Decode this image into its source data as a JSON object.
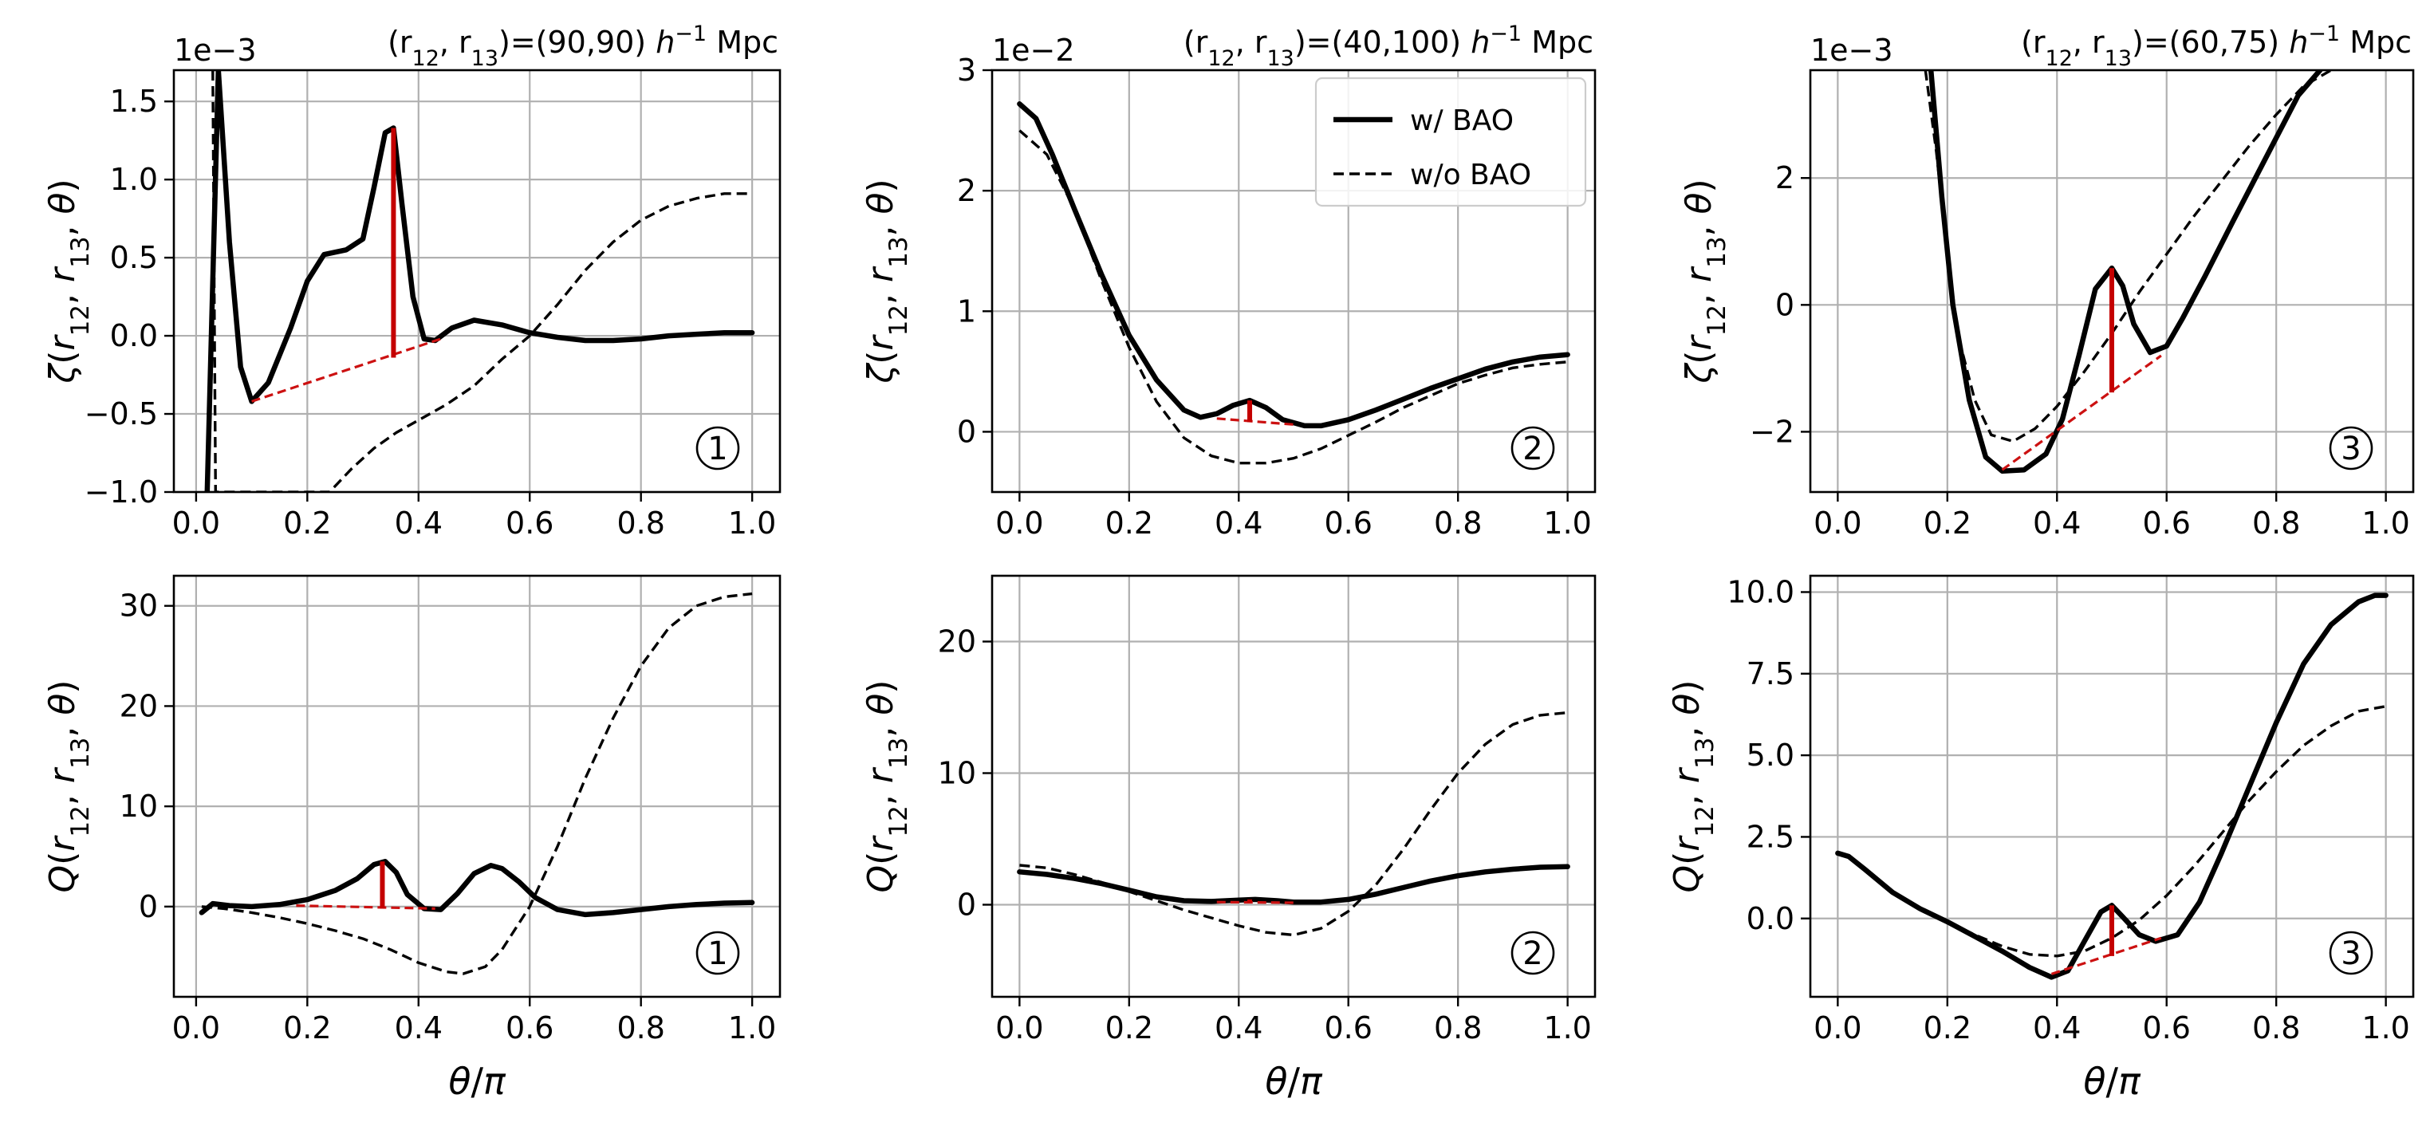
{
  "chart_data": [
    {
      "type": "line",
      "row": 0,
      "col": 0,
      "title": "(r12, r13)=(90,90) h⁻¹ Mpc",
      "title_parts": {
        "prefix": "(r",
        "s1": "12",
        "mid": ", r",
        "s2": "13",
        "eq": ")=(90,90) ",
        "h": "h",
        "sup": "−1",
        "unit": " Mpc"
      },
      "ylabel": {
        "sym": "ζ",
        "open": "(r",
        "s1": "12",
        "mid": ", r",
        "s2": "13",
        "close": ", θ)"
      },
      "xlabel": "",
      "sci_offset": "1e−3",
      "xlim": [
        -0.04,
        1.05
      ],
      "ylim": [
        -1.0,
        1.7
      ],
      "xticks": [
        0.0,
        0.2,
        0.4,
        0.6,
        0.8,
        1.0
      ],
      "xtick_labels": [
        "0.0",
        "0.2",
        "0.4",
        "0.6",
        "0.8",
        "1.0"
      ],
      "yticks": [
        -1.0,
        -0.5,
        0.0,
        0.5,
        1.0,
        1.5
      ],
      "ytick_labels": [
        "−1.0",
        "−0.5",
        "0.0",
        "0.5",
        "1.0",
        "1.5"
      ],
      "marker": "①",
      "series": [
        {
          "name": "w/ BAO",
          "style": "solid",
          "x": [
            0.02,
            0.04,
            0.06,
            0.08,
            0.1,
            0.13,
            0.17,
            0.2,
            0.23,
            0.27,
            0.3,
            0.32,
            0.34,
            0.355,
            0.37,
            0.39,
            0.41,
            0.43,
            0.46,
            0.5,
            0.55,
            0.6,
            0.65,
            0.7,
            0.75,
            0.8,
            0.85,
            0.9,
            0.95,
            1.0
          ],
          "y": [
            -1.0,
            1.7,
            0.6,
            -0.2,
            -0.42,
            -0.3,
            0.05,
            0.35,
            0.52,
            0.55,
            0.62,
            0.95,
            1.3,
            1.33,
            0.85,
            0.25,
            -0.02,
            -0.03,
            0.05,
            0.1,
            0.07,
            0.02,
            -0.01,
            -0.03,
            -0.03,
            -0.02,
            0.0,
            0.01,
            0.02,
            0.02
          ]
        },
        {
          "name": "w/o BAO",
          "style": "dashed",
          "x": [
            0.03,
            0.035,
            0.05,
            0.08,
            0.15,
            0.24,
            0.28,
            0.32,
            0.36,
            0.4,
            0.45,
            0.5,
            0.55,
            0.6,
            0.65,
            0.7,
            0.75,
            0.8,
            0.85,
            0.9,
            0.95,
            1.0
          ],
          "y": [
            1.7,
            -1.0,
            -1.0,
            -1.0,
            -1.0,
            -1.0,
            -0.85,
            -0.72,
            -0.62,
            -0.54,
            -0.44,
            -0.32,
            -0.15,
            0.0,
            0.2,
            0.42,
            0.6,
            0.74,
            0.83,
            0.88,
            0.91,
            0.91
          ]
        }
      ],
      "bao_baseline": {
        "x": [
          0.1,
          0.44
        ],
        "y": [
          -0.42,
          -0.02
        ]
      },
      "bao_peak": {
        "x": 0.355,
        "y0": -0.14,
        "y1": 1.33
      }
    },
    {
      "type": "line",
      "row": 0,
      "col": 1,
      "title": "(r12, r13)=(40,100) h⁻¹ Mpc",
      "title_parts": {
        "prefix": "(r",
        "s1": "12",
        "mid": ", r",
        "s2": "13",
        "eq": ")=(40,100) ",
        "h": "h",
        "sup": "−1",
        "unit": " Mpc"
      },
      "ylabel": {
        "sym": "ζ",
        "open": "(r",
        "s1": "12",
        "mid": ", r",
        "s2": "13",
        "close": ", θ)"
      },
      "xlabel": "",
      "sci_offset": "1e−2",
      "xlim": [
        -0.05,
        1.05
      ],
      "ylim": [
        -0.5,
        3.0
      ],
      "xticks": [
        0.0,
        0.2,
        0.4,
        0.6,
        0.8,
        1.0
      ],
      "xtick_labels": [
        "0.0",
        "0.2",
        "0.4",
        "0.6",
        "0.8",
        "1.0"
      ],
      "yticks": [
        0,
        1,
        2,
        3
      ],
      "ytick_labels": [
        "0",
        "1",
        "2",
        "3"
      ],
      "marker": "②",
      "legend": {
        "entries": [
          "w/ BAO",
          "w/o BAO"
        ],
        "location": "upper right"
      },
      "series": [
        {
          "name": "w/ BAO",
          "style": "solid",
          "x": [
            0.0,
            0.03,
            0.06,
            0.1,
            0.15,
            0.2,
            0.25,
            0.3,
            0.33,
            0.36,
            0.39,
            0.42,
            0.45,
            0.48,
            0.52,
            0.55,
            0.6,
            0.65,
            0.7,
            0.75,
            0.8,
            0.85,
            0.9,
            0.95,
            1.0
          ],
          "y": [
            2.72,
            2.6,
            2.3,
            1.85,
            1.3,
            0.8,
            0.43,
            0.18,
            0.12,
            0.15,
            0.22,
            0.26,
            0.2,
            0.1,
            0.05,
            0.05,
            0.1,
            0.18,
            0.27,
            0.36,
            0.44,
            0.52,
            0.58,
            0.62,
            0.64
          ]
        },
        {
          "name": "w/o BAO",
          "style": "dashed",
          "x": [
            0.0,
            0.05,
            0.1,
            0.15,
            0.2,
            0.25,
            0.3,
            0.35,
            0.4,
            0.45,
            0.5,
            0.55,
            0.6,
            0.65,
            0.7,
            0.75,
            0.8,
            0.85,
            0.9,
            0.95,
            1.0
          ],
          "y": [
            2.5,
            2.3,
            1.85,
            1.25,
            0.7,
            0.25,
            -0.05,
            -0.2,
            -0.26,
            -0.26,
            -0.22,
            -0.14,
            -0.03,
            0.08,
            0.2,
            0.3,
            0.4,
            0.47,
            0.53,
            0.56,
            0.58
          ]
        }
      ],
      "bao_baseline": {
        "x": [
          0.36,
          0.5
        ],
        "y": [
          0.11,
          0.06
        ]
      },
      "bao_peak": {
        "x": 0.42,
        "y0": 0.08,
        "y1": 0.26
      }
    },
    {
      "type": "line",
      "row": 0,
      "col": 2,
      "title": "(r12, r13)=(60,75) h⁻¹ Mpc",
      "title_parts": {
        "prefix": "(r",
        "s1": "12",
        "mid": ", r",
        "s2": "13",
        "eq": ")=(60,75) ",
        "h": "h",
        "sup": "−1",
        "unit": " Mpc"
      },
      "ylabel": {
        "sym": "ζ",
        "open": "(r",
        "s1": "12",
        "mid": ", r",
        "s2": "13",
        "close": ", θ)"
      },
      "xlabel": "",
      "sci_offset": "1e−3",
      "xlim": [
        -0.05,
        1.05
      ],
      "ylim": [
        -2.95,
        3.7
      ],
      "xticks": [
        0.0,
        0.2,
        0.4,
        0.6,
        0.8,
        1.0
      ],
      "xtick_labels": [
        "0.0",
        "0.2",
        "0.4",
        "0.6",
        "0.8",
        "1.0"
      ],
      "yticks": [
        -2,
        0,
        2
      ],
      "ytick_labels": [
        "−2",
        "0",
        "2"
      ],
      "marker": "③",
      "series": [
        {
          "name": "w/ BAO",
          "style": "solid",
          "x": [
            0.17,
            0.19,
            0.21,
            0.24,
            0.27,
            0.3,
            0.34,
            0.38,
            0.41,
            0.44,
            0.47,
            0.5,
            0.52,
            0.54,
            0.57,
            0.6,
            0.63,
            0.67,
            0.72,
            0.78,
            0.84,
            0.88
          ],
          "y": [
            3.7,
            1.7,
            0.0,
            -1.5,
            -2.4,
            -2.62,
            -2.6,
            -2.35,
            -1.8,
            -0.8,
            0.25,
            0.58,
            0.3,
            -0.3,
            -0.75,
            -0.65,
            -0.2,
            0.45,
            1.3,
            2.3,
            3.3,
            3.7
          ]
        },
        {
          "name": "w/o BAO",
          "style": "dashed",
          "x": [
            0.16,
            0.18,
            0.2,
            0.22,
            0.25,
            0.28,
            0.32,
            0.36,
            0.4,
            0.45,
            0.5,
            0.55,
            0.6,
            0.65,
            0.7,
            0.75,
            0.8,
            0.85,
            0.9
          ],
          "y": [
            3.7,
            2.4,
            0.8,
            -0.5,
            -1.5,
            -2.05,
            -2.15,
            -1.95,
            -1.6,
            -1.05,
            -0.45,
            0.2,
            0.8,
            1.4,
            1.95,
            2.5,
            3.0,
            3.45,
            3.7
          ]
        }
      ],
      "bao_baseline": {
        "x": [
          0.3,
          0.59
        ],
        "y": [
          -2.6,
          -0.8
        ]
      },
      "bao_peak": {
        "x": 0.5,
        "y0": -1.38,
        "y1": 0.58
      }
    },
    {
      "type": "line",
      "row": 1,
      "col": 0,
      "title": "",
      "ylabel": {
        "sym": "Q",
        "open": "(r",
        "s1": "12",
        "mid": ", r",
        "s2": "13",
        "close": ", θ)"
      },
      "xlabel": "θ/π",
      "xlim": [
        -0.04,
        1.05
      ],
      "ylim": [
        -9,
        33
      ],
      "xticks": [
        0.0,
        0.2,
        0.4,
        0.6,
        0.8,
        1.0
      ],
      "xtick_labels": [
        "0.0",
        "0.2",
        "0.4",
        "0.6",
        "0.8",
        "1.0"
      ],
      "yticks": [
        0,
        10,
        20,
        30
      ],
      "ytick_labels": [
        "0",
        "10",
        "20",
        "30"
      ],
      "marker": "①",
      "series": [
        {
          "name": "w/ BAO",
          "style": "solid",
          "x": [
            0.01,
            0.03,
            0.06,
            0.1,
            0.15,
            0.2,
            0.25,
            0.29,
            0.32,
            0.34,
            0.36,
            0.38,
            0.41,
            0.44,
            0.47,
            0.5,
            0.53,
            0.55,
            0.58,
            0.61,
            0.65,
            0.7,
            0.75,
            0.8,
            0.85,
            0.9,
            0.95,
            1.0
          ],
          "y": [
            -0.6,
            0.3,
            0.1,
            0.0,
            0.2,
            0.7,
            1.6,
            2.8,
            4.2,
            4.5,
            3.4,
            1.2,
            -0.2,
            -0.3,
            1.3,
            3.3,
            4.1,
            3.8,
            2.5,
            0.9,
            -0.3,
            -0.8,
            -0.6,
            -0.3,
            0.0,
            0.2,
            0.35,
            0.4
          ]
        },
        {
          "name": "w/o BAO",
          "style": "dashed",
          "x": [
            0.01,
            0.05,
            0.1,
            0.15,
            0.2,
            0.25,
            0.3,
            0.35,
            0.4,
            0.45,
            0.48,
            0.52,
            0.55,
            0.6,
            0.65,
            0.7,
            0.75,
            0.8,
            0.85,
            0.9,
            0.95,
            1.0
          ],
          "y": [
            0.0,
            -0.2,
            -0.6,
            -1.1,
            -1.7,
            -2.4,
            -3.2,
            -4.3,
            -5.6,
            -6.5,
            -6.7,
            -6.0,
            -4.3,
            0.0,
            6.0,
            12.8,
            18.8,
            24.0,
            27.8,
            30.0,
            30.9,
            31.2
          ]
        }
      ],
      "bao_baseline": {
        "x": [
          0.18,
          0.43
        ],
        "y": [
          0.1,
          -0.2
        ]
      },
      "bao_peak": {
        "x": 0.335,
        "y0": -0.2,
        "y1": 4.5
      }
    },
    {
      "type": "line",
      "row": 1,
      "col": 1,
      "title": "",
      "ylabel": {
        "sym": "Q",
        "open": "(r",
        "s1": "12",
        "mid": ", r",
        "s2": "13",
        "close": ", θ)"
      },
      "xlabel": "θ/π",
      "xlim": [
        -0.05,
        1.05
      ],
      "ylim": [
        -7,
        25
      ],
      "xticks": [
        0.0,
        0.2,
        0.4,
        0.6,
        0.8,
        1.0
      ],
      "xtick_labels": [
        "0.0",
        "0.2",
        "0.4",
        "0.6",
        "0.8",
        "1.0"
      ],
      "yticks": [
        0,
        10,
        20
      ],
      "ytick_labels": [
        "0",
        "10",
        "20"
      ],
      "marker": "②",
      "series": [
        {
          "name": "w/ BAO",
          "style": "solid",
          "x": [
            0.0,
            0.05,
            0.1,
            0.15,
            0.2,
            0.25,
            0.3,
            0.35,
            0.4,
            0.43,
            0.47,
            0.5,
            0.55,
            0.6,
            0.65,
            0.7,
            0.75,
            0.8,
            0.85,
            0.9,
            0.95,
            1.0
          ],
          "y": [
            2.5,
            2.3,
            2.0,
            1.6,
            1.1,
            0.6,
            0.3,
            0.25,
            0.35,
            0.4,
            0.3,
            0.2,
            0.2,
            0.4,
            0.8,
            1.3,
            1.8,
            2.2,
            2.5,
            2.7,
            2.85,
            2.9
          ]
        },
        {
          "name": "w/o BAO",
          "style": "dashed",
          "x": [
            0.0,
            0.05,
            0.1,
            0.15,
            0.2,
            0.25,
            0.3,
            0.35,
            0.4,
            0.45,
            0.5,
            0.55,
            0.6,
            0.65,
            0.7,
            0.75,
            0.8,
            0.85,
            0.9,
            0.95,
            1.0
          ],
          "y": [
            3.0,
            2.8,
            2.3,
            1.7,
            1.0,
            0.3,
            -0.4,
            -1.0,
            -1.6,
            -2.1,
            -2.3,
            -1.8,
            -0.5,
            1.5,
            4.2,
            7.2,
            10.0,
            12.2,
            13.7,
            14.4,
            14.6
          ]
        }
      ],
      "bao_baseline": {
        "x": [
          0.36,
          0.5
        ],
        "y": [
          0.2,
          0.15
        ]
      },
      "bao_peak": {
        "x": 0.42,
        "y0": 0.15,
        "y1": 0.4
      }
    },
    {
      "type": "line",
      "row": 1,
      "col": 2,
      "title": "",
      "ylabel": {
        "sym": "Q",
        "open": "(r",
        "s1": "12",
        "mid": ", r",
        "s2": "13",
        "close": ", θ)"
      },
      "xlabel": "θ/π",
      "xlim": [
        -0.05,
        1.05
      ],
      "ylim": [
        -2.4,
        10.5
      ],
      "xticks": [
        0.0,
        0.2,
        0.4,
        0.6,
        0.8,
        1.0
      ],
      "xtick_labels": [
        "0.0",
        "0.2",
        "0.4",
        "0.6",
        "0.8",
        "1.0"
      ],
      "yticks": [
        0.0,
        2.5,
        5.0,
        7.5,
        10.0
      ],
      "ytick_labels": [
        "0.0",
        "2.5",
        "5.0",
        "7.5",
        "10.0"
      ],
      "marker": "③",
      "series": [
        {
          "name": "w/ BAO",
          "style": "solid",
          "x": [
            0.0,
            0.02,
            0.05,
            0.1,
            0.15,
            0.2,
            0.25,
            0.3,
            0.35,
            0.39,
            0.42,
            0.45,
            0.48,
            0.5,
            0.52,
            0.55,
            0.58,
            0.62,
            0.66,
            0.7,
            0.75,
            0.8,
            0.85,
            0.9,
            0.95,
            0.98,
            1.0
          ],
          "y": [
            2.0,
            1.9,
            1.5,
            0.8,
            0.3,
            -0.1,
            -0.55,
            -1.0,
            -1.5,
            -1.8,
            -1.6,
            -0.7,
            0.2,
            0.4,
            0.05,
            -0.5,
            -0.7,
            -0.5,
            0.5,
            2.0,
            4.0,
            6.0,
            7.8,
            9.0,
            9.7,
            9.9,
            9.9
          ]
        },
        {
          "name": "w/o BAO",
          "style": "dashed",
          "x": [
            0.15,
            0.2,
            0.25,
            0.3,
            0.35,
            0.4,
            0.45,
            0.5,
            0.55,
            0.6,
            0.65,
            0.7,
            0.75,
            0.8,
            0.85,
            0.9,
            0.95,
            1.0
          ],
          "y": [
            0.3,
            -0.1,
            -0.5,
            -0.85,
            -1.1,
            -1.15,
            -1.0,
            -0.6,
            -0.05,
            0.7,
            1.6,
            2.6,
            3.6,
            4.5,
            5.3,
            5.9,
            6.35,
            6.5
          ]
        }
      ],
      "bao_baseline": {
        "x": [
          0.39,
          0.59
        ],
        "y": [
          -1.7,
          -0.6
        ]
      },
      "bao_peak": {
        "x": 0.5,
        "y0": -1.15,
        "y1": 0.4
      }
    }
  ]
}
